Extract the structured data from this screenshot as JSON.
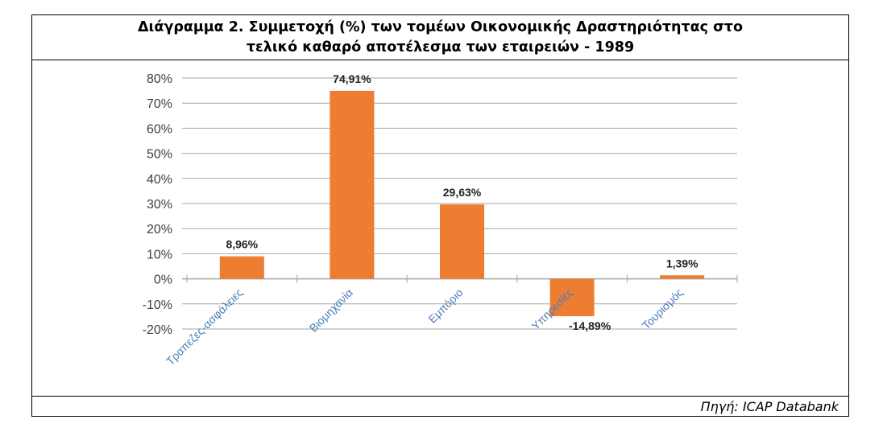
{
  "title_line1": "Διάγραμμα 2. Συμμετοχή (%) των τομέων Οικονομικής Δραστηριότητας στο",
  "title_line2": "τελικό καθαρό αποτέλεσμα των εταιρειών - 1989",
  "source": "Πηγή: ICAP Databank",
  "colors": {
    "bar": "#ED7D31",
    "grid": "#A6A6A6",
    "category_label": "#4A7EBB"
  },
  "chart_data": {
    "type": "bar",
    "title": "Διάγραμμα 2. Συμμετοχή (%) των τομέων Οικονομικής Δραστηριότητας στο τελικό καθαρό αποτέλεσμα των εταιρειών - 1989",
    "categories": [
      "Τραπεζες-ασφάλειες",
      "Βιομηχανία",
      "Εμπόριο",
      "Υπηρεσίες",
      "Τουρισμός"
    ],
    "values": [
      8.96,
      74.91,
      29.63,
      -14.89,
      1.39
    ],
    "data_labels": [
      "8,96%",
      "74,91%",
      "29,63%",
      "-14,89%",
      "1,39%"
    ],
    "yticks": [
      80,
      70,
      60,
      50,
      40,
      30,
      20,
      10,
      0,
      -10,
      -20
    ],
    "ytick_labels": [
      "80%",
      "70%",
      "60%",
      "50%",
      "40%",
      "30%",
      "20%",
      "10%",
      "0%",
      "-10%",
      "-20%"
    ],
    "ylim": [
      -20,
      80
    ],
    "grid": true,
    "xlabel": "",
    "ylabel": ""
  }
}
